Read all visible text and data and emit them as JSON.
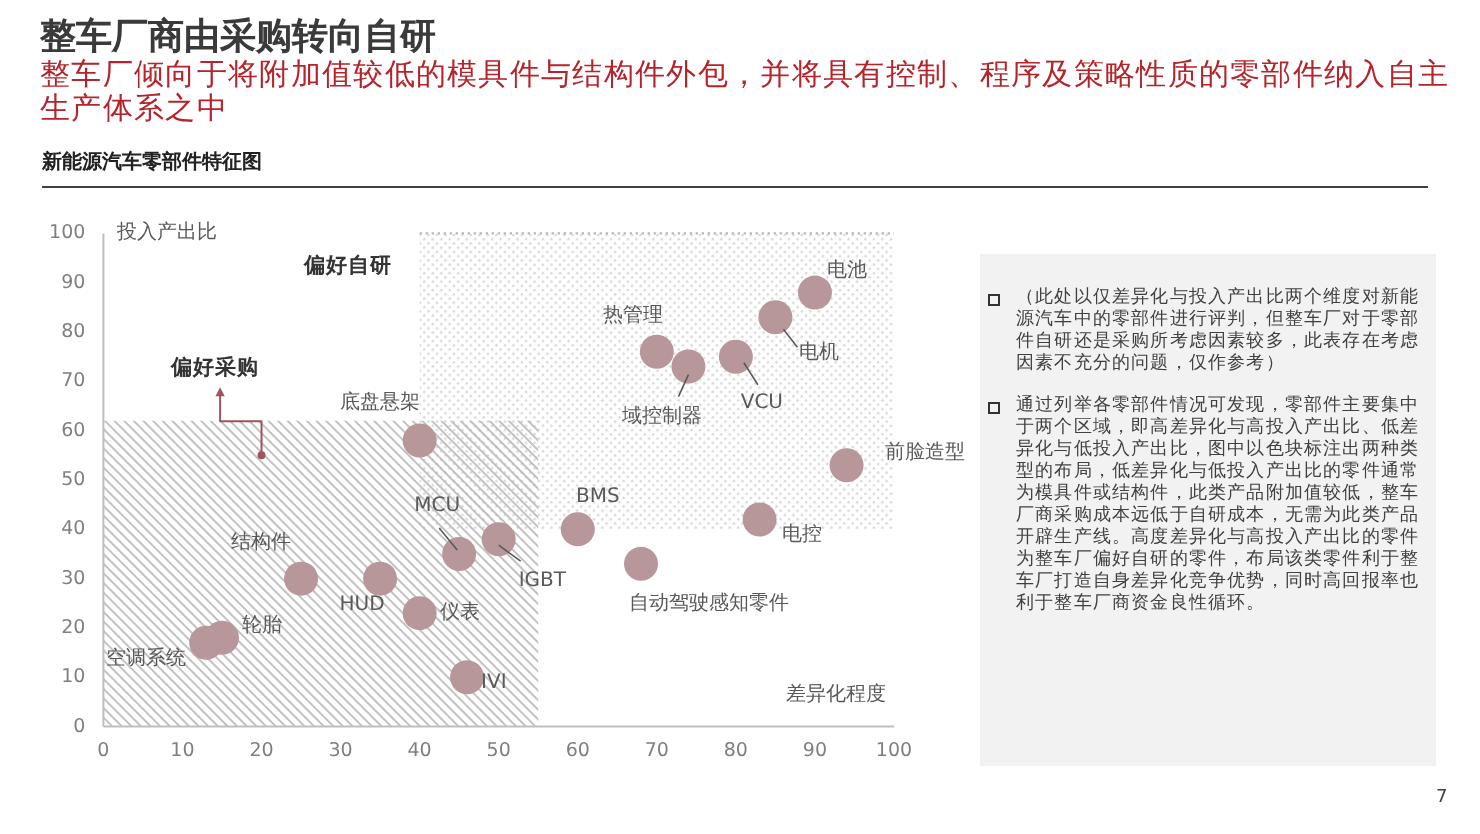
{
  "chart_data": {
    "type": "scatter",
    "title": "整车厂商由采购转向自研",
    "subtitle": "整车厂倾向于将附加值较低的模具件与结构件外包，并将具有控制、程序及策略性质的零部件纳入自主生产体系之中",
    "xlabel": "差异化程度",
    "ylabel": "投入产出比",
    "xlim": [
      0,
      100
    ],
    "ylim": [
      0,
      100
    ],
    "xticks": [
      0,
      10,
      20,
      30,
      40,
      50,
      60,
      70,
      80,
      90,
      100
    ],
    "yticks": [
      0,
      10,
      20,
      30,
      40,
      50,
      60,
      70,
      80,
      90,
      100
    ],
    "series": [
      {
        "type": "area",
        "color": "#b4b4b4",
        "x": [
          0,
          55
        ],
        "values": [
          62,
          62
        ],
        "line_style": "solid"
      },
      {
        "type": "line",
        "color": "#b8b8b8",
        "x": [
          40,
          100
        ],
        "values": [
          100,
          100
        ],
        "lower": [
          40,
          40
        ],
        "upper": [
          100,
          100
        ],
        "line_style": "dotted"
      },
      {
        "type": "scatter",
        "color": "#b8979b",
        "marker": "circle",
        "x": [
          13,
          15,
          25,
          35,
          40,
          46,
          45,
          50,
          60,
          68,
          83,
          94,
          40,
          70,
          74,
          80,
          85,
          90
        ],
        "values": [
          17,
          18,
          30,
          30,
          23,
          10,
          35,
          38,
          40,
          33,
          42,
          53,
          58,
          76,
          73,
          75,
          83,
          88
        ]
      }
    ],
    "annotations": [
      "新能源汽车零部件特征图",
      {
        "text": "偏好采购",
        "x": 20,
        "y": 55
      },
      "偏好自研",
      {
        "text": "空调系统",
        "x": 13,
        "y": 17
      },
      {
        "text": "轮胎",
        "x": 15,
        "y": 18
      },
      {
        "text": "结构件",
        "x": 25,
        "y": 30
      },
      {
        "text": "HUD",
        "x": 35,
        "y": 30
      },
      {
        "text": "仪表",
        "x": 40,
        "y": 23
      },
      {
        "text": "IVI",
        "x": 46,
        "y": 10
      },
      {
        "text": "MCU",
        "x": 45,
        "y": 35
      },
      {
        "text": "IGBT",
        "x": 50,
        "y": 38
      },
      {
        "text": "BMS",
        "x": 60,
        "y": 40
      },
      {
        "text": "自动驾驶感知零件",
        "x": 68,
        "y": 33
      },
      {
        "text": "电控",
        "x": 83,
        "y": 42
      },
      {
        "text": "前脸造型",
        "x": 94,
        "y": 53
      },
      {
        "text": "底盘悬架",
        "x": 40,
        "y": 58
      },
      {
        "text": "热管理",
        "x": 70,
        "y": 76
      },
      {
        "text": "域控制器",
        "x": 74,
        "y": 73
      },
      {
        "text": "VCU",
        "x": 80,
        "y": 75
      },
      {
        "text": "电机",
        "x": 85,
        "y": 83
      },
      {
        "text": "电池",
        "x": 90,
        "y": 88
      },
      "（此处以仅差异化与投入产出比两个维度对新能源汽车中的零部件进行评判，但整车厂对于零部件自研还是采购所考虑因素较多，此表存在考虑因素不充分的问题，仅作参考）",
      "通过列举各零部件情况可发现，零部件主要集中于两个区域，即高差异化与高投入产出比、低差异化与低投入产出比，图中以色块标注出两种类型的布局，低差异化与低投入产出比的零件通常为模具件或结构件，此类产品附加值较低，整车厂商采购成本远低于自研成本，无需为此类产品开辟生产线。高度差异化与高投入产出比的零件为整车厂偏好自研的零件，布局该类零件利于整车厂打造自身差异化竞争优势，同时高回报率也利于整车厂商资金良性循环。",
      "7"
    ]
  }
}
